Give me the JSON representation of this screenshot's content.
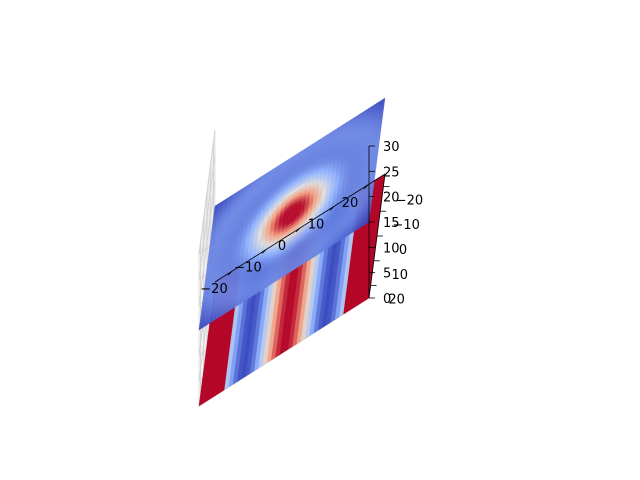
{
  "chart_data": {
    "type": "surface3d",
    "title": "",
    "xlabel": "",
    "ylabel": "",
    "zlabel": "",
    "xlim": [
      -25,
      25
    ],
    "ylim": [
      -25,
      25
    ],
    "zlim": [
      0,
      30
    ],
    "x_ticks": [
      "−20",
      "−10",
      "0",
      "10",
      "20"
    ],
    "y_ticks": [
      "−20",
      "−10",
      "0",
      "10",
      "20"
    ],
    "z_ticks": [
      "0",
      "5",
      "10",
      "15",
      "20",
      "25",
      "30"
    ],
    "grid": true,
    "colormap": "coolwarm",
    "series": [
      {
        "role": "lower-surface",
        "z_offset": 0,
        "description": "sinusoidal stripes along x: red edges, blue and red bands near center"
      },
      {
        "role": "upper-surface",
        "z_offset": 15,
        "description": "radially symmetric bump: red peak at center fading to blue at edges"
      }
    ]
  }
}
